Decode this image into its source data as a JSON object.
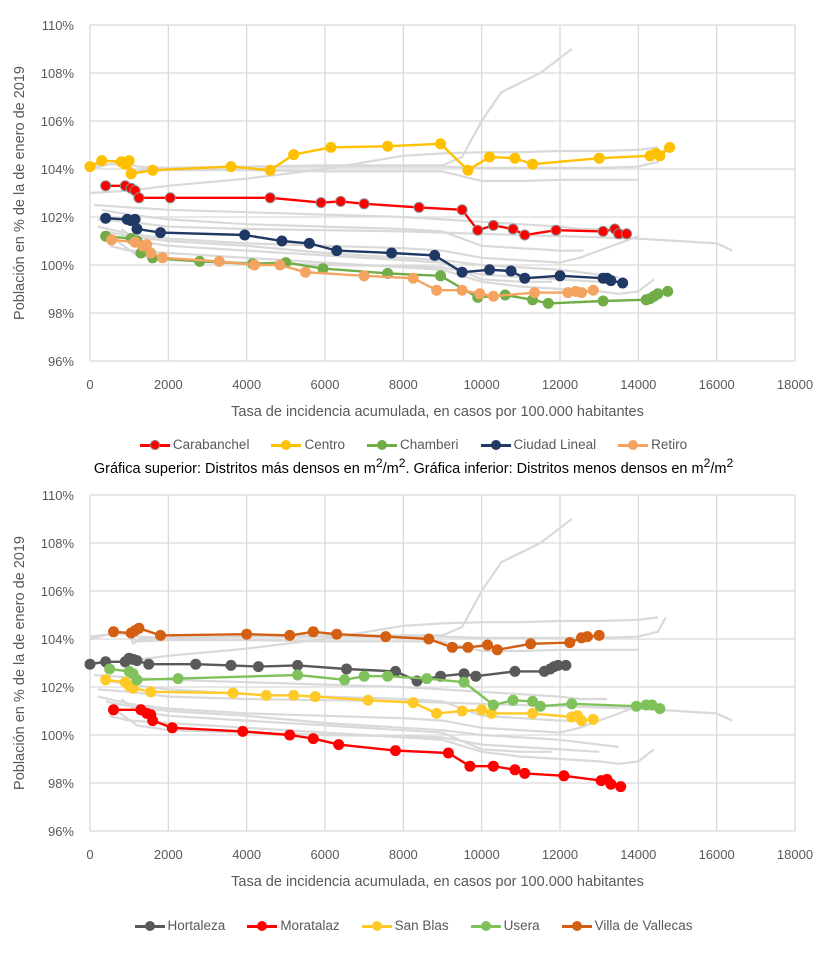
{
  "caption": {
    "part1": "Gráfica superior: Distritos más densos en m",
    "sup1": "2",
    "part2": "/m",
    "sup2": "2",
    "part3": ". Gráfica inferior: Distritos menos densos en m",
    "sup3": "2",
    "part4": "/m",
    "sup4": "2"
  },
  "chart_data": [
    {
      "type": "line",
      "title": "",
      "xlabel": "Tasa de incidencia acumulada, en casos por 100.000 habitantes",
      "ylabel": "Población en % de la de enero de 2019",
      "xlim": [
        0,
        18000
      ],
      "ylim": [
        96,
        110
      ],
      "xticks": [
        "0",
        "2000",
        "4000",
        "6000",
        "8000",
        "10000",
        "12000",
        "14000",
        "16000",
        "18000"
      ],
      "yticks": [
        "96%",
        "98%",
        "100%",
        "102%",
        "104%",
        "106%",
        "108%",
        "110%"
      ],
      "grid": true,
      "legend_position": "bottom",
      "series": [
        {
          "name": "Carabanchel",
          "color": "#FF0000",
          "marker_edge": "#8c8c8c",
          "x": [
            400,
            900,
            1050,
            1150,
            1250,
            2050,
            4600,
            5900,
            6400,
            7000,
            8400,
            9500,
            9900,
            10300,
            10800,
            11100,
            11900,
            13100,
            13400,
            13500,
            13700
          ],
          "y": [
            103.3,
            103.3,
            103.2,
            103.1,
            102.8,
            102.8,
            102.8,
            102.6,
            102.65,
            102.55,
            102.4,
            102.3,
            101.45,
            101.65,
            101.5,
            101.25,
            101.45,
            101.4,
            101.5,
            101.3,
            101.3
          ]
        },
        {
          "name": "Centro",
          "color": "#FFC000",
          "x": [
            0,
            300,
            800,
            900,
            1000,
            1050,
            1600,
            3600,
            4600,
            5200,
            6150,
            7600,
            8950,
            9650,
            10200,
            10850,
            11300,
            13000,
            14300,
            14450,
            14550,
            14800
          ],
          "y": [
            104.1,
            104.35,
            104.3,
            104.2,
            104.35,
            103.8,
            103.95,
            104.1,
            103.95,
            104.6,
            104.9,
            104.95,
            105.05,
            103.95,
            104.5,
            104.45,
            104.2,
            104.45,
            104.55,
            104.65,
            104.55,
            104.9
          ]
        },
        {
          "name": "Chamberi",
          "color": "#70AD47",
          "x": [
            400,
            1050,
            1200,
            1300,
            1450,
            1600,
            2800,
            4150,
            5000,
            5950,
            7600,
            8950,
            9900,
            10600,
            11300,
            11700,
            13100,
            14200,
            14300,
            14400,
            14500,
            14750
          ],
          "y": [
            101.2,
            101.1,
            101.0,
            100.5,
            100.6,
            100.3,
            100.15,
            100.05,
            100.1,
            99.85,
            99.65,
            99.55,
            98.65,
            98.75,
            98.55,
            98.4,
            98.5,
            98.55,
            98.6,
            98.7,
            98.8,
            98.9
          ]
        },
        {
          "name": "Ciudad Lineal",
          "color": "#1F3864",
          "x": [
            400,
            950,
            1050,
            1150,
            1200,
            1800,
            3950,
            4900,
            5600,
            6300,
            7700,
            8800,
            9500,
            10200,
            10750,
            11100,
            12000,
            13100,
            13200,
            13300,
            13600
          ],
          "y": [
            101.95,
            101.9,
            101.85,
            101.9,
            101.5,
            101.35,
            101.25,
            101.0,
            100.9,
            100.6,
            100.5,
            100.4,
            99.7,
            99.8,
            99.75,
            99.45,
            99.55,
            99.45,
            99.45,
            99.35,
            99.25
          ]
        },
        {
          "name": "Retiro",
          "color": "#F4A460",
          "x": [
            550,
            1150,
            1350,
            1450,
            1550,
            1850,
            3300,
            4200,
            4850,
            5500,
            7000,
            8250,
            8850,
            9500,
            9950,
            10300,
            11350,
            12200,
            12400,
            12550,
            12850
          ],
          "y": [
            101.05,
            100.95,
            100.8,
            100.85,
            100.5,
            100.3,
            100.15,
            100.0,
            100.0,
            99.7,
            99.55,
            99.45,
            98.95,
            98.95,
            98.8,
            98.7,
            98.85,
            98.85,
            98.9,
            98.85,
            98.95
          ]
        }
      ],
      "background_series_color": "#D9D9D9"
    },
    {
      "type": "line",
      "title": "",
      "xlabel": "Tasa de incidencia acumulada, en casos por 100.000 habitantes",
      "ylabel": "Población en % de la de enero de 2019",
      "xlim": [
        0,
        18000
      ],
      "ylim": [
        96,
        110
      ],
      "xticks": [
        "0",
        "2000",
        "4000",
        "6000",
        "8000",
        "10000",
        "12000",
        "14000",
        "16000",
        "18000"
      ],
      "yticks": [
        "96%",
        "98%",
        "100%",
        "102%",
        "104%",
        "106%",
        "108%",
        "110%"
      ],
      "grid": true,
      "legend_position": "bottom",
      "series": [
        {
          "name": "Hortaleza",
          "color": "#595959",
          "x": [
            0,
            400,
            900,
            1000,
            1100,
            1200,
            1500,
            2700,
            3600,
            4300,
            5300,
            6550,
            7800,
            8350,
            8950,
            9550,
            9850,
            10850,
            11600,
            11750,
            11850,
            11950,
            12150
          ],
          "y": [
            102.95,
            103.05,
            103.05,
            103.2,
            103.15,
            103.1,
            102.95,
            102.95,
            102.9,
            102.85,
            102.9,
            102.75,
            102.65,
            102.25,
            102.45,
            102.55,
            102.45,
            102.65,
            102.65,
            102.75,
            102.85,
            102.9,
            102.9
          ]
        },
        {
          "name": "Moratalaz",
          "color": "#FF0000",
          "x": [
            600,
            1300,
            1450,
            1550,
            1600,
            2100,
            3900,
            5100,
            5700,
            6350,
            7800,
            9150,
            9700,
            10300,
            10850,
            11100,
            12100,
            13050,
            13200,
            13300,
            13550
          ],
          "y": [
            101.05,
            101.05,
            100.9,
            100.85,
            100.6,
            100.3,
            100.15,
            100.0,
            99.85,
            99.6,
            99.35,
            99.25,
            98.7,
            98.7,
            98.55,
            98.4,
            98.3,
            98.1,
            98.15,
            97.95,
            97.85
          ]
        },
        {
          "name": "San Blas",
          "color": "#FFCA28",
          "x": [
            400,
            900,
            1000,
            1100,
            1550,
            3650,
            4500,
            5200,
            5750,
            7100,
            8250,
            8850,
            9500,
            10000,
            10250,
            11300,
            12300,
            12450,
            12550,
            12850
          ],
          "y": [
            102.3,
            102.2,
            102.05,
            101.95,
            101.8,
            101.75,
            101.65,
            101.65,
            101.6,
            101.45,
            101.35,
            100.9,
            101.0,
            101.05,
            100.9,
            100.9,
            100.75,
            100.8,
            100.6,
            100.65
          ]
        },
        {
          "name": "Usera",
          "color": "#7FC15A",
          "x": [
            500,
            1000,
            1100,
            1200,
            2250,
            5300,
            6500,
            7000,
            7600,
            8600,
            9550,
            10300,
            10800,
            11300,
            11500,
            12300,
            13950,
            14200,
            14350,
            14550
          ],
          "y": [
            102.75,
            102.65,
            102.55,
            102.3,
            102.35,
            102.5,
            102.3,
            102.45,
            102.45,
            102.35,
            102.2,
            101.25,
            101.45,
            101.4,
            101.2,
            101.3,
            101.2,
            101.25,
            101.25,
            101.1
          ]
        },
        {
          "name": "Villa de Vallecas",
          "color": "#D35F13",
          "x": [
            600,
            1050,
            1150,
            1250,
            1800,
            4000,
            5100,
            5700,
            6300,
            7550,
            8650,
            9250,
            9650,
            10150,
            10400,
            11250,
            12250,
            12550,
            12700,
            13000
          ],
          "y": [
            104.3,
            104.25,
            104.35,
            104.45,
            104.15,
            104.2,
            104.15,
            104.3,
            104.2,
            104.1,
            104.0,
            103.65,
            103.65,
            103.75,
            103.55,
            103.8,
            103.85,
            104.05,
            104.1,
            104.15
          ]
        }
      ],
      "background_series_color": "#D9D9D9"
    }
  ],
  "background_lines": [
    {
      "x": [
        0,
        500,
        1000,
        1100,
        1300,
        2000,
        4000,
        6000,
        7000,
        8000,
        9000,
        9500,
        10000,
        10500,
        11000,
        11500,
        12300
      ],
      "y": [
        104.0,
        104.2,
        104.25,
        103.8,
        104.0,
        104.05,
        104.1,
        104.15,
        104.15,
        104.15,
        104.15,
        104.5,
        106.0,
        107.2,
        107.6,
        108.0,
        109.0
      ]
    },
    {
      "x": [
        0,
        500,
        1000,
        1200,
        2000,
        4000,
        6000,
        8000,
        9000,
        10000,
        11000,
        12000,
        13000,
        14000,
        14500,
        14700
      ],
      "y": [
        104.1,
        104.2,
        104.2,
        104.1,
        104.05,
        104.1,
        104.1,
        104.1,
        104.1,
        104.05,
        104.05,
        104.05,
        104.05,
        104.1,
        104.3,
        104.9
      ]
    },
    {
      "x": [
        0,
        1000,
        2000,
        4000,
        6000,
        8000,
        9000,
        10000,
        11000,
        12000,
        13000,
        14000,
        14500
      ],
      "y": [
        103.0,
        103.1,
        103.3,
        103.6,
        104.0,
        104.55,
        104.65,
        104.7,
        104.7,
        104.75,
        104.75,
        104.8,
        104.9
      ]
    },
    {
      "x": [
        800,
        1200,
        2000,
        4000,
        6000,
        8000,
        9000,
        10000,
        11000,
        12000,
        13000,
        14000
      ],
      "y": [
        104.3,
        103.9,
        103.95,
        103.95,
        103.9,
        103.9,
        103.9,
        103.5,
        103.5,
        103.55,
        103.55,
        103.55
      ]
    },
    {
      "x": [
        200,
        1000,
        2000,
        4000,
        6000,
        8000,
        9000,
        10000,
        11000,
        12000,
        13000,
        14000,
        16000,
        16400
      ],
      "y": [
        101.9,
        101.8,
        101.6,
        101.5,
        101.45,
        101.4,
        101.35,
        101.3,
        101.25,
        101.2,
        101.15,
        101.1,
        100.9,
        100.6
      ]
    },
    {
      "x": [
        100,
        1000,
        2000,
        4000,
        6000,
        8000,
        9000,
        10000,
        11000,
        12000,
        12500,
        13000,
        13200
      ],
      "y": [
        102.5,
        102.4,
        102.3,
        102.2,
        102.1,
        102.0,
        101.9,
        101.8,
        101.7,
        101.6,
        101.5,
        101.5,
        101.5
      ]
    },
    {
      "x": [
        300,
        1000,
        2000,
        4000,
        6000,
        8000,
        9000,
        10000,
        11000,
        12000,
        12600
      ],
      "y": [
        102.3,
        102.1,
        101.9,
        101.7,
        101.6,
        101.5,
        101.4,
        100.8,
        100.7,
        100.6,
        100.6
      ]
    },
    {
      "x": [
        200,
        1000,
        2000,
        4000,
        6000,
        8000,
        9000,
        10000,
        11000,
        12000,
        12500,
        13000,
        14000
      ],
      "y": [
        101.6,
        101.3,
        101.1,
        100.9,
        100.8,
        100.7,
        100.6,
        100.3,
        100.2,
        100.1,
        100.3,
        100.6,
        101.2
      ]
    },
    {
      "x": [
        600,
        1200,
        2000,
        4000,
        6000,
        8000,
        9000,
        10000,
        11000,
        12000,
        13000
      ],
      "y": [
        101.1,
        100.4,
        100.2,
        100.1,
        100.0,
        99.95,
        99.9,
        99.6,
        99.5,
        99.4,
        99.3
      ]
    },
    {
      "x": [
        400,
        1000,
        2000,
        4000,
        6000,
        8000,
        9000,
        10000,
        11000,
        12000,
        13000,
        13500
      ],
      "y": [
        101.4,
        101.2,
        101.0,
        100.8,
        100.5,
        100.3,
        100.2,
        100.0,
        99.9,
        99.8,
        99.6,
        99.5
      ]
    },
    {
      "x": [
        500,
        1000,
        2000,
        4000,
        6000,
        8000,
        9000,
        10000,
        11000,
        12000,
        13000,
        13500,
        14000,
        14400
      ],
      "y": [
        100.8,
        100.6,
        100.5,
        100.3,
        100.1,
        99.9,
        99.8,
        99.3,
        99.1,
        99.0,
        98.9,
        98.8,
        98.9,
        99.4
      ]
    },
    {
      "x": [
        800,
        1200,
        2000,
        4000,
        6000,
        8000,
        9000,
        10000,
        11000,
        11800
      ],
      "y": [
        101.5,
        101.0,
        100.8,
        100.6,
        100.4,
        100.2,
        100.1,
        99.4,
        99.3,
        99.3
      ]
    }
  ],
  "background_lines_color": "#D9D9D9"
}
